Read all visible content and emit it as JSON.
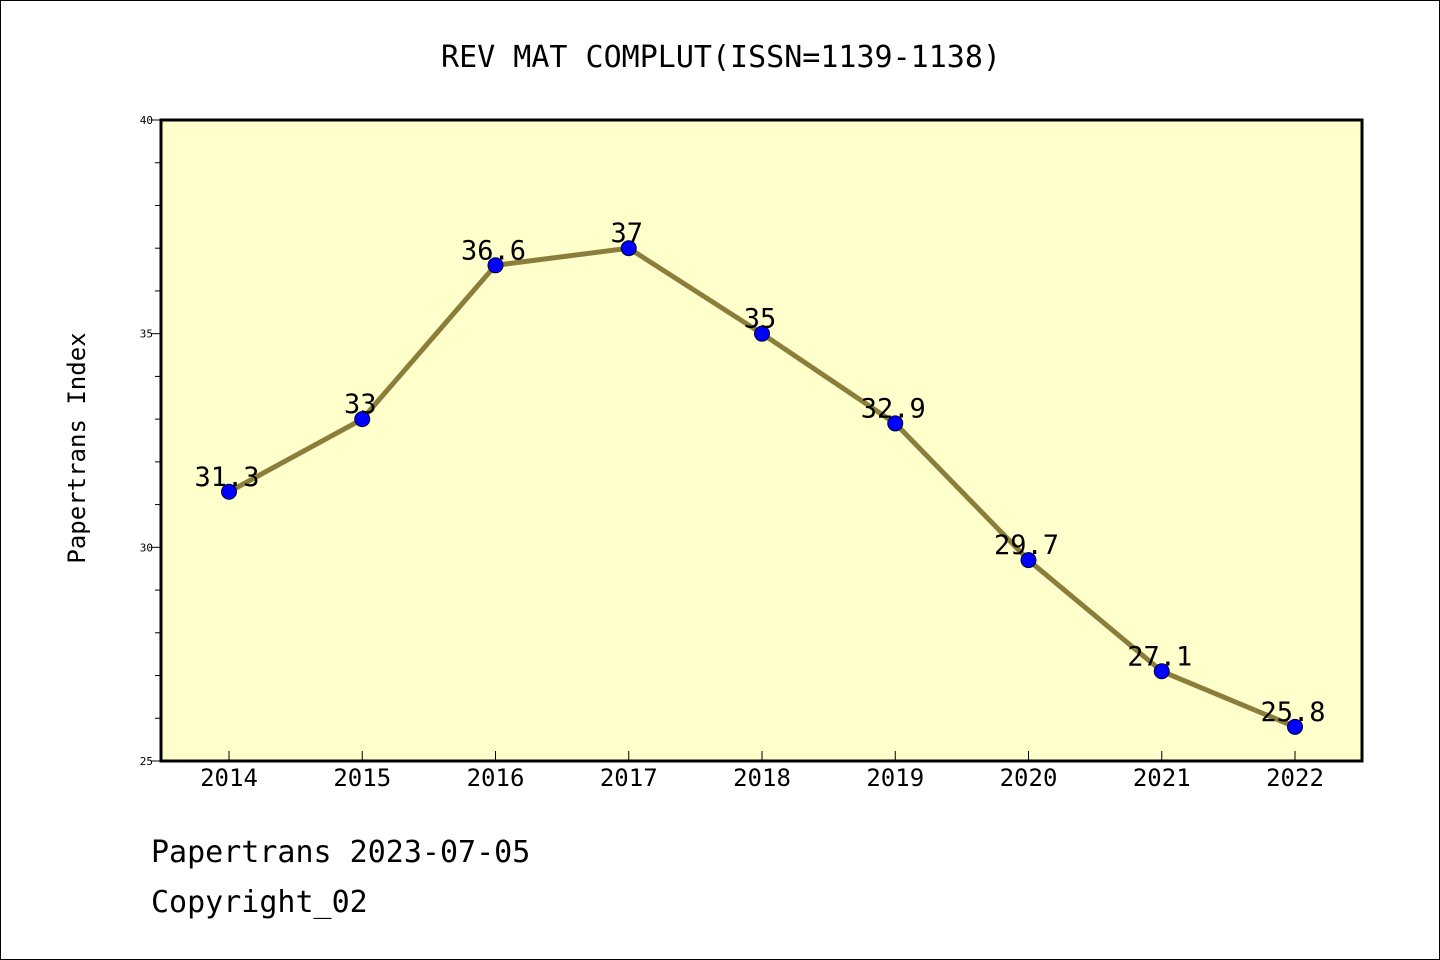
{
  "chart_data": {
    "type": "line",
    "title": "REV MAT COMPLUT(ISSN=1139-1138)",
    "xlabel": "",
    "ylabel": "Papertrans Index",
    "categories": [
      "2014",
      "2015",
      "2016",
      "2017",
      "2018",
      "2019",
      "2020",
      "2021",
      "2022"
    ],
    "series": [
      {
        "values": [
          31.3,
          33,
          36.6,
          37,
          35,
          32.9,
          29.7,
          27.1,
          25.8
        ]
      }
    ],
    "data_labels": [
      "31.3",
      "33",
      "36.6",
      "37",
      "35",
      "32.9",
      "29.7",
      "27.1",
      "25.8"
    ],
    "ylim": [
      25,
      40
    ],
    "yticks": [
      25,
      30,
      35,
      40
    ],
    "grid": false,
    "colors": {
      "plot_background": "#ffffcc",
      "line": "#8b7d3a",
      "marker": "#0000ff"
    }
  },
  "footer": {
    "line1": "Papertrans 2023-07-05",
    "line2": "Copyright_02"
  }
}
